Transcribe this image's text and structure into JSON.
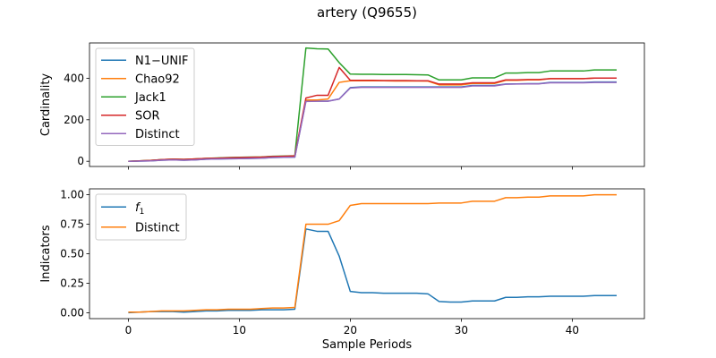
{
  "figure": {
    "title": "artery (Q9655)"
  },
  "chart_data": [
    {
      "type": "line",
      "ylabel": "Cardinality",
      "xlabel": "",
      "xlim": [
        -3.5,
        46.5
      ],
      "ylim": [
        -25,
        570
      ],
      "xticks": [
        0,
        10,
        20,
        30,
        40
      ],
      "yticks": [
        0,
        200,
        400
      ],
      "show_xtick_labels": false,
      "legend": "top-left",
      "grid": false,
      "series": [
        {
          "name": "N1−UNIF",
          "color": "#1f77b4",
          "x": [
            0,
            1,
            2,
            3,
            4,
            5,
            6,
            7,
            8,
            9,
            10,
            11,
            12,
            13,
            14,
            15,
            16,
            17,
            18,
            19,
            20,
            21,
            22,
            23,
            24,
            25,
            26,
            27,
            28,
            29,
            30,
            31,
            32,
            33,
            34,
            35,
            36,
            37,
            38,
            39,
            40,
            41,
            42,
            43,
            44
          ],
          "y": [
            0,
            1,
            2,
            5,
            7,
            5,
            7,
            10,
            11,
            12,
            13,
            14,
            15,
            18,
            19,
            20,
            290,
            290,
            290,
            300,
            355,
            358,
            358,
            358,
            358,
            358,
            358,
            358,
            358,
            358,
            358,
            365,
            365,
            365,
            372,
            373,
            374,
            374,
            380,
            380,
            380,
            380,
            382,
            382,
            382
          ]
        },
        {
          "name": "Chao92",
          "color": "#ff7f0e",
          "x": [
            0,
            1,
            2,
            3,
            4,
            5,
            6,
            7,
            8,
            9,
            10,
            11,
            12,
            13,
            14,
            15,
            16,
            17,
            18,
            19,
            20,
            21,
            22,
            23,
            24,
            25,
            26,
            27,
            28,
            29,
            30,
            31,
            32,
            33,
            34,
            35,
            36,
            37,
            38,
            39,
            40,
            41,
            42,
            43,
            44
          ],
          "y": [
            0,
            2,
            4,
            8,
            10,
            9,
            11,
            14,
            15,
            17,
            18,
            19,
            20,
            23,
            24,
            26,
            295,
            295,
            300,
            380,
            388,
            388,
            388,
            388,
            387,
            387,
            387,
            386,
            368,
            368,
            368,
            375,
            375,
            375,
            390,
            390,
            392,
            392,
            398,
            398,
            398,
            398,
            401,
            401,
            401
          ]
        },
        {
          "name": "Jack1",
          "color": "#2ca02c",
          "x": [
            0,
            1,
            2,
            3,
            4,
            5,
            6,
            7,
            8,
            9,
            10,
            11,
            12,
            13,
            14,
            15,
            16,
            17,
            18,
            19,
            20,
            21,
            22,
            23,
            24,
            25,
            26,
            27,
            28,
            29,
            30,
            31,
            32,
            33,
            34,
            35,
            36,
            37,
            38,
            39,
            40,
            41,
            42,
            43,
            44
          ],
          "y": [
            0,
            2,
            4,
            8,
            10,
            9,
            11,
            14,
            16,
            18,
            19,
            20,
            21,
            24,
            25,
            27,
            546,
            542,
            541,
            475,
            420,
            419,
            419,
            418,
            418,
            418,
            417,
            416,
            392,
            392,
            392,
            402,
            402,
            402,
            425,
            425,
            427,
            427,
            435,
            435,
            435,
            435,
            440,
            440,
            440
          ]
        },
        {
          "name": "SOR",
          "color": "#d62728",
          "x": [
            0,
            1,
            2,
            3,
            4,
            5,
            6,
            7,
            8,
            9,
            10,
            11,
            12,
            13,
            14,
            15,
            16,
            17,
            18,
            19,
            20,
            21,
            22,
            23,
            24,
            25,
            26,
            27,
            28,
            29,
            30,
            31,
            32,
            33,
            34,
            35,
            36,
            37,
            38,
            39,
            40,
            41,
            42,
            43,
            44
          ],
          "y": [
            0,
            2,
            4,
            8,
            10,
            9,
            11,
            14,
            15,
            17,
            18,
            19,
            20,
            23,
            24,
            26,
            305,
            318,
            318,
            452,
            390,
            390,
            390,
            389,
            389,
            389,
            388,
            388,
            372,
            372,
            372,
            378,
            378,
            378,
            392,
            392,
            394,
            394,
            398,
            398,
            398,
            398,
            401,
            401,
            401
          ]
        },
        {
          "name": "Distinct",
          "color": "#9467bd",
          "x": [
            0,
            1,
            2,
            3,
            4,
            5,
            6,
            7,
            8,
            9,
            10,
            11,
            12,
            13,
            14,
            15,
            16,
            17,
            18,
            19,
            20,
            21,
            22,
            23,
            24,
            25,
            26,
            27,
            28,
            29,
            30,
            31,
            32,
            33,
            34,
            35,
            36,
            37,
            38,
            39,
            40,
            41,
            42,
            43,
            44
          ],
          "y": [
            0,
            1,
            2,
            5,
            7,
            5,
            7,
            10,
            11,
            12,
            13,
            14,
            15,
            18,
            19,
            20,
            288,
            289,
            289,
            300,
            353,
            356,
            356,
            356,
            356,
            356,
            356,
            356,
            356,
            356,
            356,
            363,
            363,
            363,
            371,
            372,
            373,
            373,
            378,
            378,
            378,
            378,
            380,
            380,
            380
          ]
        }
      ]
    },
    {
      "type": "line",
      "ylabel": "Indicators",
      "xlabel": "Sample Periods",
      "xlim": [
        -3.5,
        46.5
      ],
      "ylim": [
        -0.05,
        1.05
      ],
      "xticks": [
        0,
        10,
        20,
        30,
        40
      ],
      "yticks": [
        0.0,
        0.25,
        0.5,
        0.75,
        1.0
      ],
      "ytick_labels": [
        "0.00",
        "0.25",
        "0.50",
        "0.75",
        "1.00"
      ],
      "show_xtick_labels": true,
      "legend": "top-left",
      "grid": false,
      "series": [
        {
          "name": "f1",
          "color": "#1f77b4",
          "x": [
            0,
            1,
            2,
            3,
            4,
            5,
            6,
            7,
            8,
            9,
            10,
            11,
            12,
            13,
            14,
            15,
            16,
            17,
            18,
            19,
            20,
            21,
            22,
            23,
            24,
            25,
            26,
            27,
            28,
            29,
            30,
            31,
            32,
            33,
            34,
            35,
            36,
            37,
            38,
            39,
            40,
            41,
            42,
            43,
            44
          ],
          "y": [
            0.0,
            0.005,
            0.01,
            0.01,
            0.01,
            0.005,
            0.01,
            0.015,
            0.015,
            0.02,
            0.02,
            0.02,
            0.025,
            0.025,
            0.025,
            0.03,
            0.71,
            0.69,
            0.69,
            0.48,
            0.18,
            0.17,
            0.17,
            0.165,
            0.165,
            0.165,
            0.165,
            0.16,
            0.095,
            0.09,
            0.09,
            0.1,
            0.1,
            0.1,
            0.13,
            0.13,
            0.135,
            0.135,
            0.14,
            0.14,
            0.14,
            0.14,
            0.145,
            0.145,
            0.145
          ]
        },
        {
          "name": "Distinct",
          "color": "#ff7f0e",
          "x": [
            0,
            1,
            2,
            3,
            4,
            5,
            6,
            7,
            8,
            9,
            10,
            11,
            12,
            13,
            14,
            15,
            16,
            17,
            18,
            19,
            20,
            21,
            22,
            23,
            24,
            25,
            26,
            27,
            28,
            29,
            30,
            31,
            32,
            33,
            34,
            35,
            36,
            37,
            38,
            39,
            40,
            41,
            42,
            43,
            44
          ],
          "y": [
            0.005,
            0.005,
            0.01,
            0.015,
            0.015,
            0.015,
            0.02,
            0.025,
            0.025,
            0.03,
            0.03,
            0.03,
            0.035,
            0.04,
            0.04,
            0.045,
            0.75,
            0.75,
            0.75,
            0.78,
            0.91,
            0.925,
            0.925,
            0.925,
            0.925,
            0.925,
            0.925,
            0.925,
            0.93,
            0.93,
            0.93,
            0.945,
            0.945,
            0.945,
            0.975,
            0.975,
            0.98,
            0.98,
            0.99,
            0.99,
            0.99,
            0.99,
            1.0,
            1.0,
            1.0
          ]
        }
      ]
    }
  ]
}
